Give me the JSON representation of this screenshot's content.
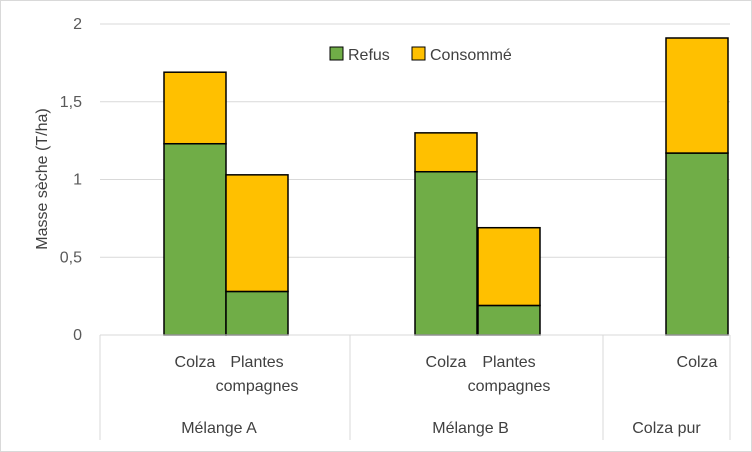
{
  "chart_data": {
    "type": "bar",
    "stacked": true,
    "ylabel": "Masse sèche (T/ha)",
    "ylim": [
      0,
      2
    ],
    "yticks": [
      "0",
      "0,5",
      "1",
      "1,5",
      "2"
    ],
    "ytick_values": [
      0,
      0.5,
      1,
      1.5,
      2
    ],
    "grid": true,
    "legend": "top-center",
    "groups": [
      {
        "label": "Mélange A",
        "bars": [
          {
            "label": "Colza",
            "refus": 1.23,
            "consomme": 0.46
          },
          {
            "label": "Plantes compagnes",
            "label_lines": [
              "Plantes",
              "compagnes"
            ],
            "refus": 0.28,
            "consomme": 0.75
          }
        ]
      },
      {
        "label": "Mélange B",
        "bars": [
          {
            "label": "Colza",
            "refus": 1.05,
            "consomme": 0.25
          },
          {
            "label": "Plantes compagnes",
            "label_lines": [
              "Plantes",
              "compagnes"
            ],
            "refus": 0.19,
            "consomme": 0.5
          }
        ]
      },
      {
        "label": "Colza pur",
        "bars": [
          {
            "label": "Colza",
            "refus": 1.17,
            "consomme": 0.74
          }
        ]
      }
    ],
    "series": [
      {
        "name": "Refus",
        "key": "refus",
        "color": "#70ad47"
      },
      {
        "name": "Consommé",
        "key": "consomme",
        "color": "#ffc000"
      }
    ]
  }
}
